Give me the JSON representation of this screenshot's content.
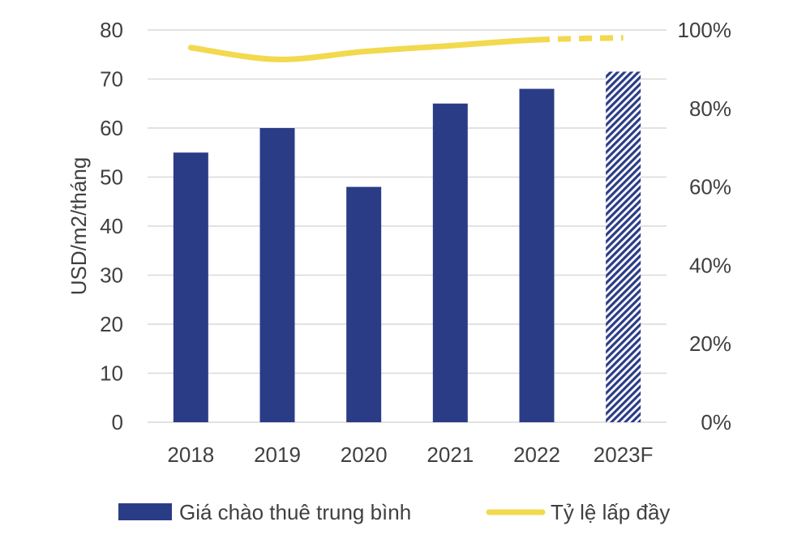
{
  "chart_data": {
    "type": "bar",
    "categories": [
      "2018",
      "2019",
      "2020",
      "2021",
      "2022",
      "2023F"
    ],
    "series": [
      {
        "name": "Giá chào thuê trung bình",
        "kind": "bar",
        "axis": "left",
        "values": [
          55,
          60,
          48,
          65,
          68,
          71.5
        ],
        "color": "#2b3c87",
        "forecast_from_index": 5
      },
      {
        "name": "Tỷ lệ lấp đầy",
        "kind": "line",
        "axis": "right",
        "values": [
          95.5,
          92.5,
          94.5,
          96,
          97.5,
          98
        ],
        "color": "#f2d94e",
        "forecast_from_index": 4,
        "smooth": true
      }
    ],
    "ylabel": "USD/m2/tháng",
    "ylim": [
      0,
      80
    ],
    "y_ticks": [
      "0",
      "10",
      "20",
      "30",
      "40",
      "50",
      "60",
      "70",
      "80"
    ],
    "y2lim": [
      0,
      100
    ],
    "y2_ticks": [
      "0%",
      "20%",
      "40%",
      "60%",
      "80%",
      "100%"
    ],
    "grid": true,
    "legend_position": "bottom"
  }
}
